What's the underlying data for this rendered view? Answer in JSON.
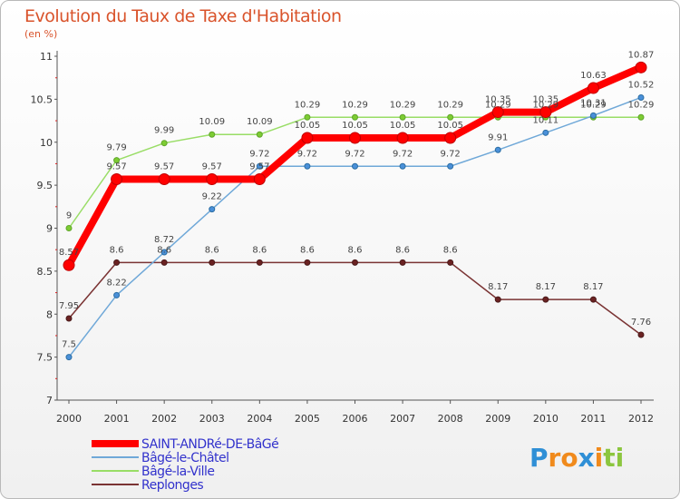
{
  "chart_data": {
    "type": "line",
    "title": "Evolution du Taux de Taxe d'Habitation",
    "subtitle": "(en %)",
    "x": [
      "2000",
      "2001",
      "2002",
      "2003",
      "2004",
      "2005",
      "2006",
      "2007",
      "2008",
      "2009",
      "2010",
      "2011",
      "2012"
    ],
    "ylim": [
      7,
      11
    ],
    "yticks": [
      7,
      7.5,
      8,
      8.5,
      9,
      9.5,
      10,
      10.5,
      11
    ],
    "ytick_labels": [
      "7",
      "7.5",
      "8",
      "8.5",
      "9",
      "9.5",
      "10",
      "10.5",
      "11"
    ],
    "grid": false,
    "legend_position": "bottom-left",
    "series": [
      {
        "name": "SAINT-ANDRé-DE-BâGé",
        "color": "#ff0000",
        "values": [
          8.57,
          9.57,
          9.57,
          9.57,
          9.57,
          10.05,
          10.05,
          10.05,
          10.05,
          10.35,
          10.35,
          10.63,
          10.87
        ],
        "labels": [
          "8.57",
          "9.57",
          "9.57",
          "9.57",
          "9.57",
          "10.05",
          "10.05",
          "10.05",
          "10.05",
          "10.35",
          "10.35",
          "10.63",
          "10.87"
        ]
      },
      {
        "name": "Bâgé-le-Châtel",
        "color": "#6fa8d8",
        "values": [
          7.5,
          8.22,
          8.72,
          9.22,
          9.72,
          9.72,
          9.72,
          9.72,
          9.72,
          9.91,
          10.11,
          10.31,
          10.52
        ],
        "labels": [
          "7.5",
          "8.22",
          "8.72",
          "9.22",
          "9.72",
          "9.72",
          "9.72",
          "9.72",
          "9.72",
          "9.91",
          "10.11",
          "10.31",
          "10.52"
        ]
      },
      {
        "name": "Bâgé-la-Ville",
        "color": "#99dd66",
        "values": [
          9,
          9.79,
          9.99,
          10.09,
          10.09,
          10.29,
          10.29,
          10.29,
          10.29,
          10.29,
          10.29,
          10.29,
          10.29
        ],
        "labels": [
          "9",
          "9.79",
          "9.99",
          "10.09",
          "10.09",
          "10.29",
          "10.29",
          "10.29",
          "10.29",
          "10.29",
          "10.29",
          "10.29",
          "10.29"
        ]
      },
      {
        "name": "Replonges",
        "color": "#7a3333",
        "values": [
          7.95,
          8.6,
          8.6,
          8.6,
          8.6,
          8.6,
          8.6,
          8.6,
          8.6,
          8.17,
          8.17,
          8.17,
          7.76
        ],
        "labels": [
          "7.95",
          "8.6",
          "8.6",
          "8.6",
          "8.6",
          "8.6",
          "8.6",
          "8.6",
          "8.6",
          "8.17",
          "8.17",
          "8.17",
          "7.76"
        ]
      }
    ]
  },
  "brand": {
    "letters": [
      "P",
      "r",
      "o",
      "x",
      "i",
      "t",
      "i"
    ],
    "colors": [
      "#2f8fd6",
      "#f08a1c",
      "#f08a1c",
      "#2f8fd6",
      "#f08a1c",
      "#8cc63f",
      "#8cc63f"
    ]
  }
}
